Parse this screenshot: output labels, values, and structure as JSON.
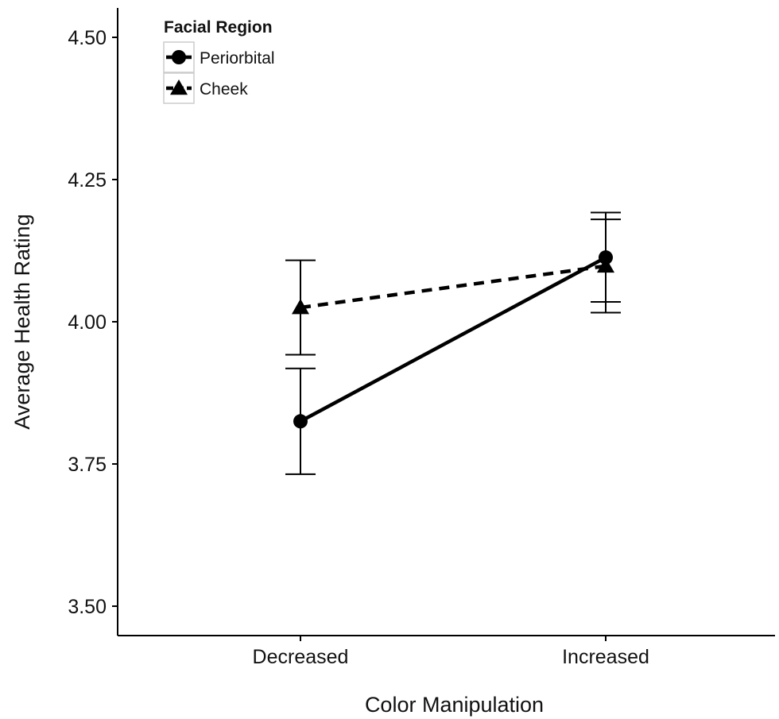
{
  "chart_data": {
    "type": "line",
    "title": "",
    "xlabel": "Color Manipulation",
    "ylabel": "Average Health Rating",
    "categories": [
      "Decreased",
      "Increased"
    ],
    "ylim": [
      3.45,
      4.55
    ],
    "yticks": [
      "3.50",
      "3.75",
      "4.00",
      "4.25",
      "4.50"
    ],
    "grid": false,
    "legend": {
      "title": "Facial Region",
      "placement": "top-left"
    },
    "series": [
      {
        "name": "Periorbital",
        "marker": "circle",
        "line_style": "solid",
        "color": "#000000",
        "values": [
          3.825,
          4.113
        ],
        "error_low": [
          3.732,
          4.035
        ],
        "error_high": [
          3.918,
          4.192
        ]
      },
      {
        "name": "Cheek",
        "marker": "triangle",
        "line_style": "dashed",
        "color": "#000000",
        "values": [
          4.025,
          4.098
        ],
        "error_low": [
          3.942,
          4.016
        ],
        "error_high": [
          4.108,
          4.18
        ]
      }
    ]
  }
}
